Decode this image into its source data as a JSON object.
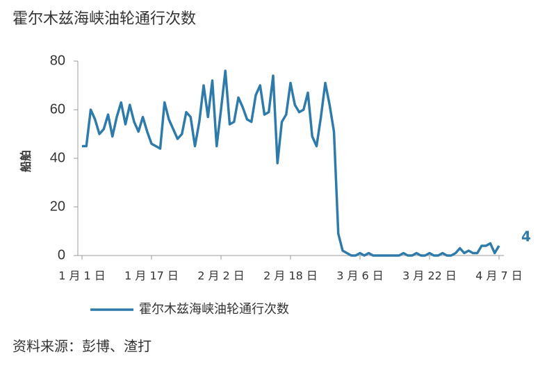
{
  "chart_data": {
    "type": "line",
    "title": "霍尔木兹海峡油轮通行次数",
    "y_label": "船舶",
    "source": "资料来源：彭博、渣打",
    "categories": [
      "1 月 1 日",
      null,
      null,
      null,
      null,
      null,
      null,
      null,
      null,
      null,
      null,
      null,
      null,
      null,
      null,
      null,
      "1 月 17 日",
      null,
      null,
      null,
      null,
      null,
      null,
      null,
      null,
      null,
      null,
      null,
      null,
      null,
      null,
      null,
      "2 月 2 日",
      null,
      null,
      null,
      null,
      null,
      null,
      null,
      null,
      null,
      null,
      null,
      null,
      null,
      null,
      null,
      "2 月 18 日",
      null,
      null,
      null,
      null,
      null,
      null,
      null,
      null,
      null,
      null,
      null,
      null,
      null,
      null,
      null,
      "3 月 6 日",
      null,
      null,
      null,
      null,
      null,
      null,
      null,
      null,
      null,
      null,
      null,
      null,
      null,
      null,
      null,
      "3 月 22 日",
      null,
      null,
      null,
      null,
      null,
      null,
      null,
      null,
      null,
      null,
      null,
      null,
      null,
      null,
      null,
      "4 月 7 日"
    ],
    "series": [
      {
        "name": "霍尔木兹海峡油轮通行次数",
        "color": "#2e7bab",
        "values": [
          45,
          45,
          60,
          56,
          50,
          52,
          58,
          49,
          57,
          63,
          54,
          62,
          55,
          51,
          57,
          51,
          46,
          45,
          44,
          63,
          56,
          52,
          48,
          50,
          59,
          57,
          45,
          55,
          70,
          57,
          72,
          45,
          60,
          76,
          54,
          55,
          65,
          61,
          56,
          55,
          66,
          70,
          58,
          59,
          74,
          38,
          55,
          58,
          71,
          62,
          59,
          60,
          67,
          49,
          45,
          57,
          71,
          62,
          51,
          9,
          2,
          1,
          0,
          0,
          1,
          0,
          1,
          0,
          0,
          0,
          0,
          0,
          0,
          0,
          1,
          0,
          0,
          1,
          0,
          0,
          1,
          0,
          0,
          1,
          0,
          0,
          1,
          3,
          1,
          2,
          1,
          1,
          4,
          4,
          5,
          1,
          4
        ]
      }
    ],
    "ylim": [
      0,
      80
    ],
    "yticks": [
      0,
      20,
      40,
      60,
      80
    ],
    "grid": false
  }
}
